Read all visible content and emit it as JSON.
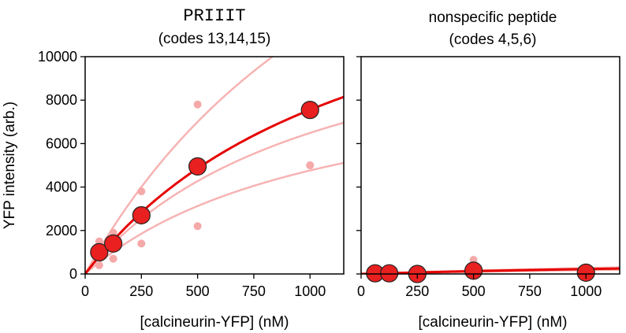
{
  "chart_data": [
    {
      "type": "scatter",
      "title_line1": "PRIIIT",
      "title_line2": "(codes 13,14,15)",
      "xlabel": "[calcineurin-YFP] (nM)",
      "ylabel": "YFP intensity (arb.)",
      "xlim": [
        0,
        1150
      ],
      "ylim": [
        0,
        10000
      ],
      "xticks": [
        0,
        250,
        500,
        750,
        1000
      ],
      "yticks": [
        0,
        2000,
        4000,
        6000,
        8000,
        10000
      ],
      "mean_points": [
        {
          "x": 62.5,
          "y": 1000
        },
        {
          "x": 125,
          "y": 1400
        },
        {
          "x": 250,
          "y": 2700
        },
        {
          "x": 500,
          "y": 4950
        },
        {
          "x": 1000,
          "y": 7550
        }
      ],
      "replicate_points": [
        {
          "x": 62.5,
          "y": 1500
        },
        {
          "x": 62.5,
          "y": 900
        },
        {
          "x": 62.5,
          "y": 400
        },
        {
          "x": 125,
          "y": 1900
        },
        {
          "x": 125,
          "y": 1600
        },
        {
          "x": 125,
          "y": 700
        },
        {
          "x": 250,
          "y": 3800
        },
        {
          "x": 250,
          "y": 2900
        },
        {
          "x": 250,
          "y": 1400
        },
        {
          "x": 500,
          "y": 7800
        },
        {
          "x": 500,
          "y": 4900
        },
        {
          "x": 500,
          "y": 2200
        },
        {
          "x": 1000,
          "y": 7500
        },
        {
          "x": 1000,
          "y": 5000
        },
        {
          "x": 1000,
          "y": 5000
        }
      ],
      "mean_fit": {
        "vmax": 17000,
        "k": 1250
      },
      "replicate_fits": [
        {
          "vmax": 28000,
          "k": 1500
        },
        {
          "vmax": 13500,
          "k": 1080
        },
        {
          "vmax": 10000,
          "k": 1100
        }
      ]
    },
    {
      "type": "scatter",
      "title_line1": "nonspecific peptide",
      "title_line2": "(codes 4,5,6)",
      "xlabel": "[calcineurin-YFP] (nM)",
      "xlim": [
        0,
        1150
      ],
      "ylim": [
        0,
        10000
      ],
      "xticks": [
        0,
        250,
        500,
        750,
        1000
      ],
      "yticks": [
        0,
        2000,
        4000,
        6000,
        8000,
        10000
      ],
      "mean_points": [
        {
          "x": 62.5,
          "y": 30
        },
        {
          "x": 125,
          "y": 30
        },
        {
          "x": 250,
          "y": 0
        },
        {
          "x": 500,
          "y": 150
        },
        {
          "x": 1000,
          "y": 60
        }
      ],
      "replicate_points": [
        {
          "x": 500,
          "y": 650
        },
        {
          "x": 500,
          "y": 100
        },
        {
          "x": 1000,
          "y": 100
        }
      ],
      "mean_fit": {
        "vmax": 900,
        "k": 3000
      },
      "replicate_fits": [
        {
          "vmax": 1100,
          "k": 3000
        },
        {
          "vmax": 700,
          "k": 3000
        }
      ]
    }
  ],
  "colors": {
    "mean": "#e8201f",
    "replicate": "#f5a9a9",
    "fit": "#e60000",
    "replicate_fit": "#f7b3b3"
  }
}
